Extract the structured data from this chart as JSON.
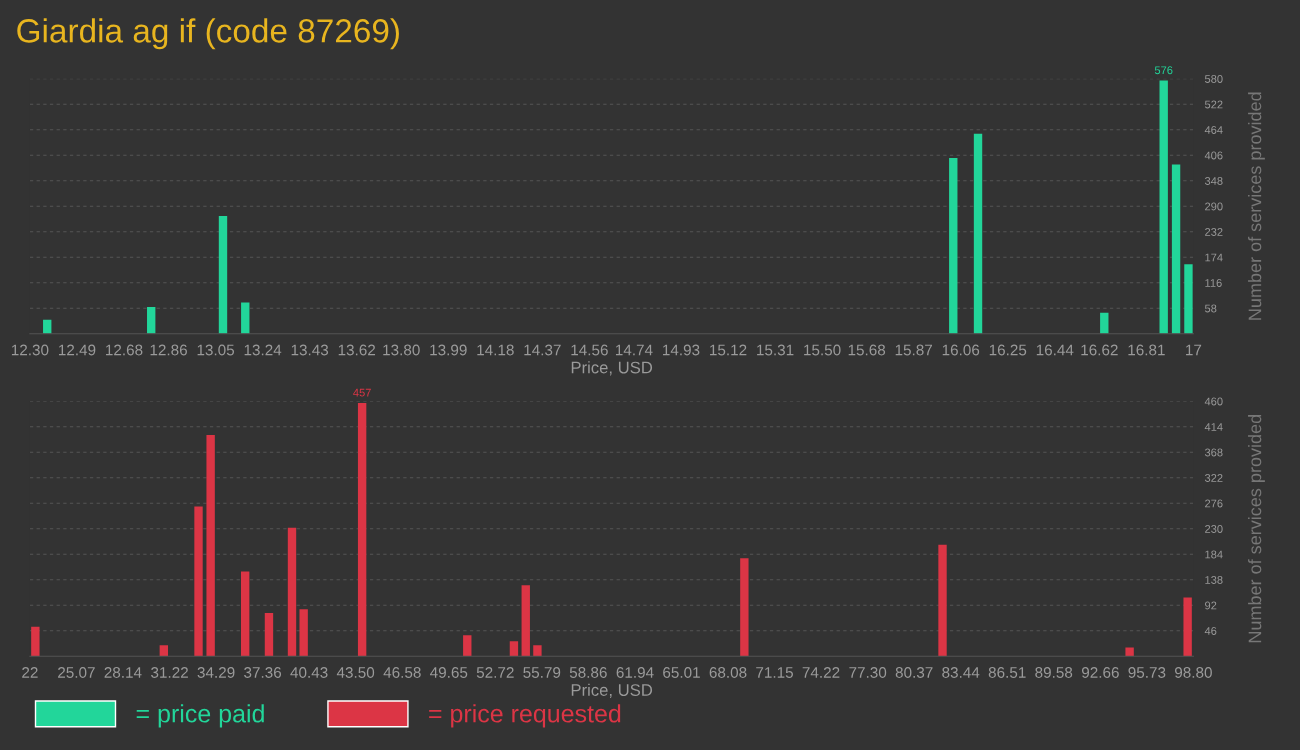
{
  "chart_data": [
    {
      "type": "bar",
      "title": "Giardia ag if (code 87269)",
      "xlabel": "Price, USD",
      "ylabel": "Number of services provided",
      "x": [
        12.37,
        12.79,
        13.08,
        13.17,
        16.03,
        16.13,
        16.64,
        16.88,
        16.93,
        16.98
      ],
      "series": [
        {
          "name": "= price paid",
          "color": "#22d69a",
          "values": [
            32,
            61,
            268,
            71,
            400,
            455,
            48,
            576,
            385,
            158
          ],
          "value_labels": [
            null,
            null,
            null,
            null,
            null,
            null,
            null,
            "576",
            null,
            null
          ]
        }
      ],
      "xlim": [
        12.3,
        17
      ],
      "xticks": [
        {
          "value": 12.3,
          "label": "12.30"
        },
        12.49,
        12.68,
        12.86,
        13.05,
        13.24,
        13.43,
        13.62,
        {
          "value": 13.8,
          "label": "13.80"
        },
        13.99,
        14.18,
        14.37,
        14.56,
        14.74,
        14.93,
        15.12,
        15.31,
        {
          "value": 15.5,
          "label": "15.50"
        },
        15.68,
        15.87,
        16.06,
        16.25,
        16.44,
        16.62,
        16.81,
        17
      ],
      "ylim": [
        0,
        580
      ],
      "yticks": [
        58,
        116,
        174,
        232,
        290,
        348,
        406,
        464,
        522,
        580
      ],
      "grid": "y",
      "legend": "bottom left"
    },
    {
      "type": "bar",
      "xlabel": "Price, USD",
      "ylabel": "Number of services provided",
      "x": [
        22.36,
        30.84,
        33.13,
        33.93,
        36.21,
        37.78,
        39.3,
        40.07,
        43.93,
        50.87,
        53.95,
        54.73,
        55.5,
        69.16,
        82.24,
        94.59,
        98.42
      ],
      "series": [
        {
          "name": "= price requested",
          "color": "#dc3545",
          "values": [
            53,
            20,
            270,
            399,
            153,
            78,
            232,
            85,
            457,
            38,
            27,
            128,
            20,
            177,
            201,
            16,
            106
          ],
          "value_labels": [
            null,
            null,
            null,
            null,
            null,
            null,
            null,
            null,
            "457",
            null,
            null,
            null,
            null,
            null,
            null,
            null,
            null
          ]
        }
      ],
      "xlim": [
        22,
        98.8
      ],
      "xticks": [
        22,
        25.07,
        28.14,
        31.22,
        34.29,
        37.36,
        40.43,
        {
          "value": 43.5,
          "label": "43.50"
        },
        46.58,
        49.65,
        52.72,
        55.79,
        58.86,
        61.94,
        65.01,
        68.08,
        71.15,
        74.22,
        {
          "value": 77.3,
          "label": "77.30"
        },
        80.37,
        83.44,
        86.51,
        89.58,
        92.66,
        95.73,
        {
          "value": 98.8,
          "label": "98.80"
        }
      ],
      "ylim": [
        0,
        460
      ],
      "yticks": [
        46,
        92,
        138,
        184,
        230,
        276,
        322,
        368,
        414,
        460
      ],
      "grid": "y",
      "legend": "bottom left"
    }
  ]
}
